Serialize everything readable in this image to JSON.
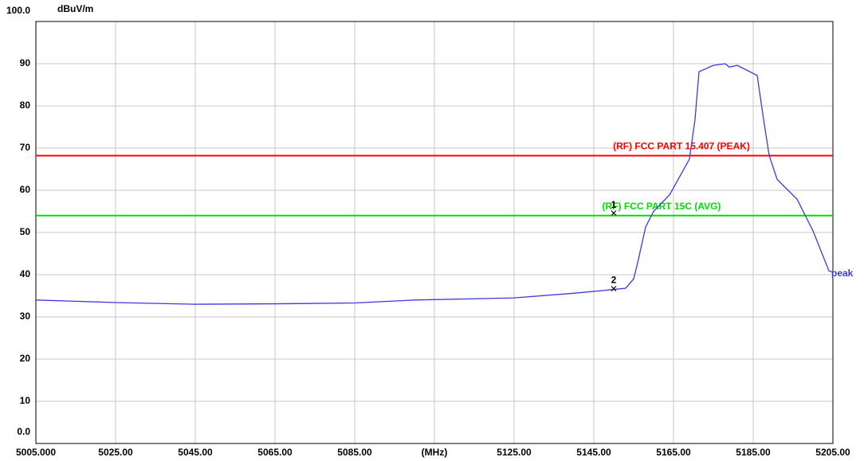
{
  "chart_data": {
    "type": "line",
    "ylabel": "dBuV/m",
    "xlim": [
      5005,
      5205
    ],
    "ylim": [
      0,
      100
    ],
    "xticks": [
      {
        "value": 5005,
        "label": "5005.000"
      },
      {
        "value": 5025,
        "label": "5025.00"
      },
      {
        "value": 5045,
        "label": "5045.00"
      },
      {
        "value": 5065,
        "label": "5065.00"
      },
      {
        "value": 5085,
        "label": "5085.00"
      },
      {
        "value": 5105,
        "label": "(MHz)"
      },
      {
        "value": 5125,
        "label": "5125.00"
      },
      {
        "value": 5145,
        "label": "5145.00"
      },
      {
        "value": 5165,
        "label": "5165.00"
      },
      {
        "value": 5185,
        "label": "5185.00"
      },
      {
        "value": 5205,
        "label": "5205.00"
      }
    ],
    "yticks": [
      {
        "value": 0,
        "label": "0.0"
      },
      10,
      20,
      30,
      40,
      50,
      60,
      70,
      80,
      90,
      {
        "value": 100,
        "label": "100.0"
      }
    ],
    "grid": true,
    "series": [
      {
        "name": "peak",
        "color": "#3a3ae0",
        "x": [
          5005,
          5015,
          5025,
          5045,
          5065,
          5085,
          5100,
          5125,
          5140,
          5150,
          5153,
          5155,
          5156,
          5158,
          5160,
          5164,
          5169,
          5170.4,
          5171.4,
          5175,
          5178,
          5179,
          5181,
          5186,
          5187.6,
          5189,
          5191,
          5196,
          5200,
          5204,
          5205
        ],
        "values": [
          34.0,
          33.7,
          33.4,
          33.0,
          33.1,
          33.3,
          34.0,
          34.5,
          35.6,
          36.5,
          36.8,
          39.0,
          42.8,
          51.3,
          55.0,
          58.9,
          67.4,
          76.8,
          88.1,
          89.6,
          90.0,
          89.2,
          89.6,
          87.2,
          76.8,
          68.3,
          62.6,
          57.9,
          50.4,
          40.9,
          40.6
        ]
      }
    ],
    "limits": [
      {
        "name": "(RF) FCC PART 15.407 (PEAK)",
        "value": 68.2,
        "color": "#ff0000"
      },
      {
        "name": "(RF) FCC PART 15C (AVG)",
        "value": 54,
        "color": "#00dd00"
      }
    ],
    "markers": [
      {
        "label": "1",
        "x": 5150,
        "y": 54.6
      },
      {
        "label": "2",
        "x": 5150,
        "y": 36.7
      }
    ]
  }
}
